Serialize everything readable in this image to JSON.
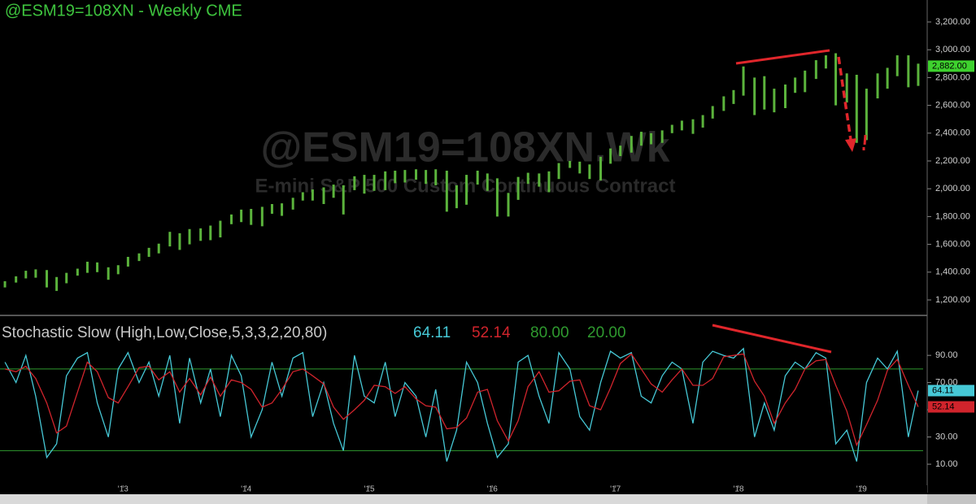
{
  "chart_data": [
    {
      "type": "hilo",
      "title": "@ESM19=108XN - Weekly  CME",
      "watermark": "@ESM19=108XN.Wk",
      "watermark_subtitle": "E-mini S&P 500 Custom Continuous Contract",
      "color": "#5bb33c",
      "x": [
        2012.04,
        2012.13,
        2012.21,
        2012.29,
        2012.38,
        2012.46,
        2012.54,
        2012.63,
        2012.71,
        2012.79,
        2012.88,
        2012.96,
        2013.04,
        2013.13,
        2013.21,
        2013.29,
        2013.38,
        2013.46,
        2013.54,
        2013.63,
        2013.71,
        2013.79,
        2013.88,
        2013.96,
        2014.04,
        2014.13,
        2014.21,
        2014.29,
        2014.38,
        2014.46,
        2014.54,
        2014.63,
        2014.71,
        2014.79,
        2014.88,
        2014.96,
        2015.04,
        2015.13,
        2015.21,
        2015.29,
        2015.38,
        2015.46,
        2015.54,
        2015.63,
        2015.71,
        2015.79,
        2015.88,
        2015.96,
        2016.04,
        2016.13,
        2016.21,
        2016.29,
        2016.38,
        2016.46,
        2016.54,
        2016.63,
        2016.71,
        2016.79,
        2016.88,
        2016.96,
        2017.04,
        2017.13,
        2017.21,
        2017.29,
        2017.38,
        2017.46,
        2017.54,
        2017.63,
        2017.71,
        2017.79,
        2017.88,
        2017.96,
        2018.04,
        2018.13,
        2018.21,
        2018.29,
        2018.38,
        2018.46,
        2018.54,
        2018.63,
        2018.71,
        2018.79,
        2018.88,
        2018.96,
        2019.04,
        2019.13,
        2019.21,
        2019.29,
        2019.38,
        2019.46
      ],
      "highs": [
        1335,
        1370,
        1410,
        1420,
        1415,
        1365,
        1395,
        1425,
        1475,
        1470,
        1435,
        1450,
        1510,
        1535,
        1575,
        1605,
        1690,
        1680,
        1710,
        1715,
        1735,
        1770,
        1815,
        1850,
        1855,
        1870,
        1890,
        1895,
        1935,
        1975,
        1995,
        2010,
        2030,
        2025,
        2090,
        2100,
        2100,
        2125,
        2130,
        2135,
        2140,
        2135,
        2140,
        2130,
        2025,
        2100,
        2130,
        2110,
        2075,
        1970,
        2085,
        2115,
        2110,
        2125,
        2185,
        2200,
        2195,
        2175,
        2230,
        2290,
        2310,
        2380,
        2410,
        2400,
        2420,
        2460,
        2490,
        2500,
        2530,
        2595,
        2665,
        2710,
        2880,
        2800,
        2810,
        2720,
        2750,
        2800,
        2850,
        2925,
        2960,
        2975,
        2830,
        2820,
        2720,
        2830,
        2870,
        2960,
        2960,
        2900
      ],
      "lows": [
        1290,
        1325,
        1355,
        1360,
        1290,
        1265,
        1320,
        1375,
        1395,
        1400,
        1345,
        1385,
        1440,
        1480,
        1510,
        1535,
        1585,
        1560,
        1600,
        1625,
        1630,
        1650,
        1745,
        1760,
        1740,
        1730,
        1820,
        1805,
        1850,
        1915,
        1915,
        1890,
        1935,
        1815,
        1990,
        1965,
        1985,
        1990,
        2040,
        2045,
        2065,
        2035,
        2025,
        1835,
        1860,
        1885,
        2030,
        1985,
        1800,
        1800,
        1920,
        2035,
        2015,
        1975,
        2070,
        2150,
        2110,
        2070,
        2060,
        2180,
        2235,
        2260,
        2310,
        2320,
        2330,
        2400,
        2420,
        2395,
        2440,
        2505,
        2560,
        2610,
        2670,
        2530,
        2570,
        2550,
        2580,
        2690,
        2695,
        2790,
        2865,
        2600,
        2620,
        2330,
        2350,
        2650,
        2720,
        2810,
        2730,
        2740
      ],
      "last": {
        "value": 2882,
        "label": "2,882.00"
      },
      "xlim": [
        2012.0,
        2019.5
      ],
      "xticks": [
        {
          "value": 2013,
          "label": "'13"
        },
        {
          "value": 2014,
          "label": "'14"
        },
        {
          "value": 2015,
          "label": "'15"
        },
        {
          "value": 2016,
          "label": "'16"
        },
        {
          "value": 2017,
          "label": "'17"
        },
        {
          "value": 2018,
          "label": "'18"
        },
        {
          "value": 2019,
          "label": "'19"
        }
      ],
      "ylim": [
        1118,
        3358
      ],
      "yticks": [
        {
          "value": 1200,
          "label": "1,200.00"
        },
        {
          "value": 1400,
          "label": "1,400.00"
        },
        {
          "value": 1600,
          "label": "1,600.00"
        },
        {
          "value": 1800,
          "label": "1,800.00"
        },
        {
          "value": 2000,
          "label": "2,000.00"
        },
        {
          "value": 2200,
          "label": "2,200.00"
        },
        {
          "value": 2400,
          "label": "2,400.00"
        },
        {
          "value": 2600,
          "label": "2,600.00"
        },
        {
          "value": 2800,
          "label": "2,800.00"
        },
        {
          "value": 3000,
          "label": "3,000.00"
        },
        {
          "value": 3200,
          "label": "3,200.00"
        }
      ]
    },
    {
      "type": "line",
      "title": "Stochastic Slow (High,Low,Close,5,3,3,2,20,80)",
      "series": [
        {
          "color": "#46c8d6",
          "values": [
            85,
            70,
            90,
            60,
            15,
            25,
            75,
            88,
            92,
            55,
            30,
            80,
            92,
            70,
            85,
            60,
            90,
            40,
            88,
            55,
            80,
            45,
            90,
            75,
            30,
            50,
            85,
            60,
            88,
            92,
            45,
            70,
            40,
            20,
            90,
            60,
            55,
            85,
            45,
            70,
            60,
            30,
            65,
            12,
            35,
            85,
            70,
            40,
            15,
            25,
            85,
            90,
            60,
            40,
            92,
            80,
            45,
            35,
            70,
            93,
            88,
            92,
            60,
            55,
            75,
            85,
            80,
            40,
            85,
            93,
            90,
            88,
            95,
            30,
            55,
            35,
            75,
            85,
            80,
            92,
            88,
            25,
            35,
            12,
            70,
            88,
            80,
            93,
            30,
            64.11
          ]
        },
        {
          "color": "#d0242c",
          "values": [
            80,
            78,
            82,
            73,
            55,
            33,
            38,
            63,
            85,
            78,
            59,
            55,
            67,
            81,
            82,
            72,
            78,
            63,
            73,
            61,
            74,
            60,
            72,
            70,
            65,
            52,
            55,
            65,
            78,
            80,
            75,
            69,
            52,
            43,
            50,
            57,
            68,
            67,
            62,
            67,
            58,
            53,
            52,
            36,
            37,
            44,
            63,
            65,
            42,
            27,
            42,
            67,
            78,
            63,
            64,
            71,
            72,
            53,
            50,
            66,
            84,
            91,
            80,
            69,
            63,
            72,
            80,
            68,
            68,
            73,
            89,
            90,
            91,
            71,
            60,
            40,
            55,
            65,
            80,
            86,
            87,
            68,
            49,
            24,
            39,
            57,
            79,
            87,
            68,
            52.14
          ]
        }
      ],
      "levels": [
        {
          "value": 80,
          "label": "80.00",
          "color": "#2f9a2f"
        },
        {
          "value": 20,
          "label": "20.00",
          "color": "#2f9a2f"
        }
      ],
      "ylim": [
        -5.5,
        114
      ],
      "yticks": [
        {
          "value": 10,
          "label": "10.00"
        },
        {
          "value": 30,
          "label": "30.00"
        },
        {
          "value": 50,
          "label": "50.00"
        },
        {
          "value": 70,
          "label": "70.00"
        },
        {
          "value": 90,
          "label": "90.00"
        }
      ]
    }
  ]
}
